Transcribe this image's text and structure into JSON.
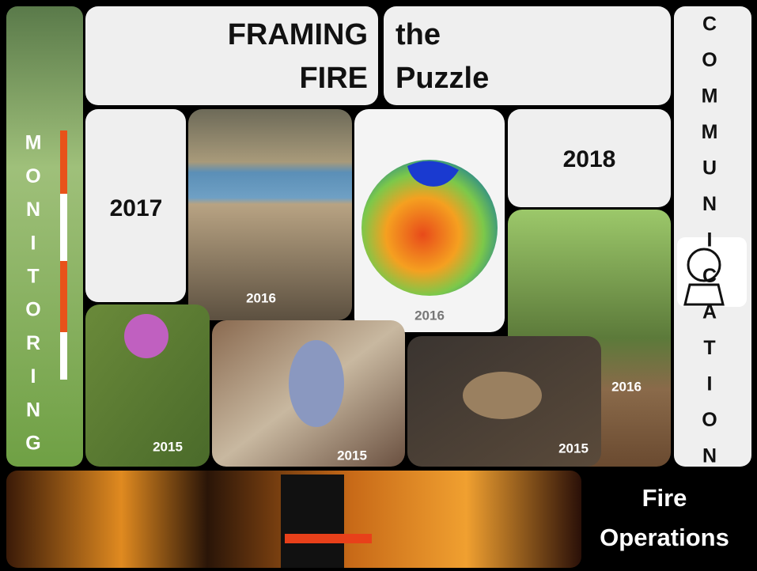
{
  "header": {
    "left": [
      "FRAMING",
      "FIRE"
    ],
    "right": [
      "the",
      "Puzzle"
    ]
  },
  "left_strip": {
    "letters": [
      "M",
      "O",
      "N",
      "I",
      "T",
      "O",
      "R",
      "I",
      "N",
      "G"
    ]
  },
  "right_strip": {
    "letters": [
      "C",
      "O",
      "M",
      "M",
      "U",
      "N",
      "I",
      "C",
      "A",
      "T",
      "I",
      "O",
      "N"
    ]
  },
  "tiles": {
    "year_2017": "2017",
    "year_2018": "2018"
  },
  "photos": {
    "lake": "2016",
    "globe": "2016",
    "forest": "2016",
    "thistle": "2015",
    "butterfly": "2015",
    "turtle": "2015"
  },
  "footer": {
    "title": [
      "Fire",
      "Operations"
    ]
  }
}
